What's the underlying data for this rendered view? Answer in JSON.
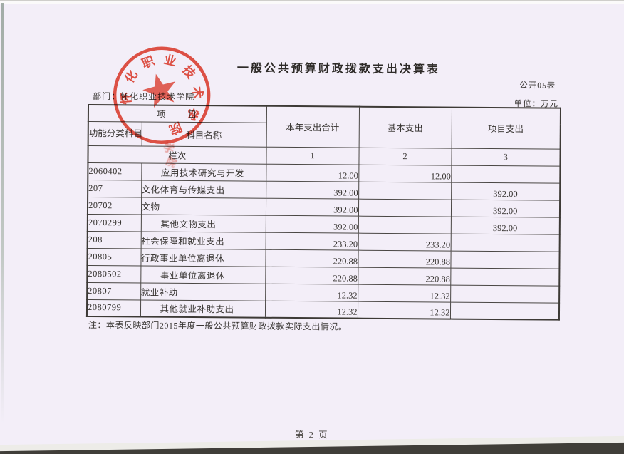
{
  "page": {
    "title": "一般公共预算财政拨款支出决算表",
    "form_code": "公开05表",
    "department_line": "部门：怀化职业技术学院",
    "unit_line": "单位：万元",
    "note": "注：本表反映部门2015年度一般公共预算财政拨款实际支出情况。",
    "page_number": "第 2 页"
  },
  "seal": {
    "text": "怀化职业技术学院",
    "color": "#d93a2b"
  },
  "table": {
    "header": {
      "item_label": "项　　目",
      "code_label": "功能分类科目编码",
      "name_label": "科目名称",
      "total_label": "本年支出合计",
      "basic_label": "基本支出",
      "project_label": "项目支出",
      "row_label": "栏次",
      "col_numbers": [
        "1",
        "2",
        "3"
      ]
    },
    "rows": [
      {
        "code": "2060402",
        "name": "应用技术研究与开发",
        "indent": true,
        "total": "12.00",
        "basic": "12.00",
        "project": ""
      },
      {
        "code": "207",
        "name": "文化体育与传媒支出",
        "indent": false,
        "total": "392.00",
        "basic": "",
        "project": "392.00"
      },
      {
        "code": "20702",
        "name": "文物",
        "indent": false,
        "total": "392.00",
        "basic": "",
        "project": "392.00"
      },
      {
        "code": "2070299",
        "name": "其他文物支出",
        "indent": true,
        "total": "392.00",
        "basic": "",
        "project": "392.00"
      },
      {
        "code": "208",
        "name": "社会保障和就业支出",
        "indent": false,
        "total": "233.20",
        "basic": "233.20",
        "project": ""
      },
      {
        "code": "20805",
        "name": "行政事业单位离退休",
        "indent": false,
        "total": "220.88",
        "basic": "220.88",
        "project": ""
      },
      {
        "code": "2080502",
        "name": "事业单位离退休",
        "indent": true,
        "total": "220.88",
        "basic": "220.88",
        "project": ""
      },
      {
        "code": "20807",
        "name": "就业补助",
        "indent": false,
        "total": "12.32",
        "basic": "12.32",
        "project": ""
      },
      {
        "code": "2080799",
        "name": "其他就业补助支出",
        "indent": true,
        "total": "12.32",
        "basic": "12.32",
        "project": ""
      }
    ]
  }
}
